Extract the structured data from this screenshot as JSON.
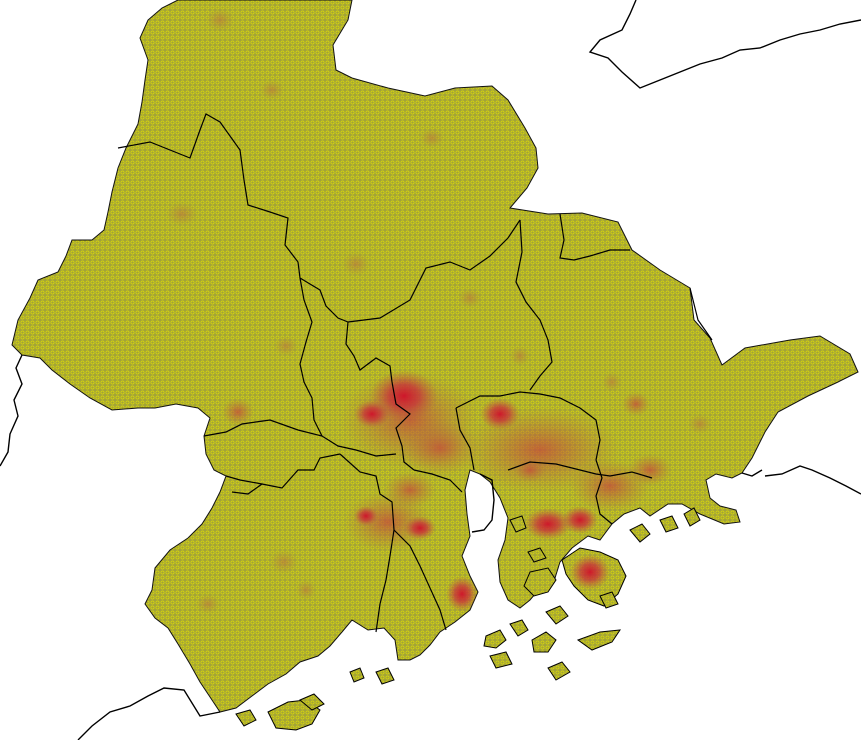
{
  "map": {
    "colors": {
      "base": "#a3a338",
      "cell_outline": "#e3e300",
      "low": "#b2823e",
      "mid": "#c45a3a",
      "high": "#cc1f2e",
      "border": "#000000",
      "background": "#ffffff"
    },
    "hotspots": [
      {
        "name": "urban-core-north",
        "level": "high"
      },
      {
        "name": "urban-core-east",
        "level": "high"
      },
      {
        "name": "urban-core-southeast",
        "level": "high"
      },
      {
        "name": "urban-core-south",
        "level": "high"
      },
      {
        "name": "urban-cluster-central",
        "level": "mid"
      },
      {
        "name": "urban-cluster-south-central",
        "level": "mid"
      },
      {
        "name": "urban-cluster-east",
        "level": "mid"
      },
      {
        "name": "town-scatter",
        "level": "low"
      }
    ]
  }
}
